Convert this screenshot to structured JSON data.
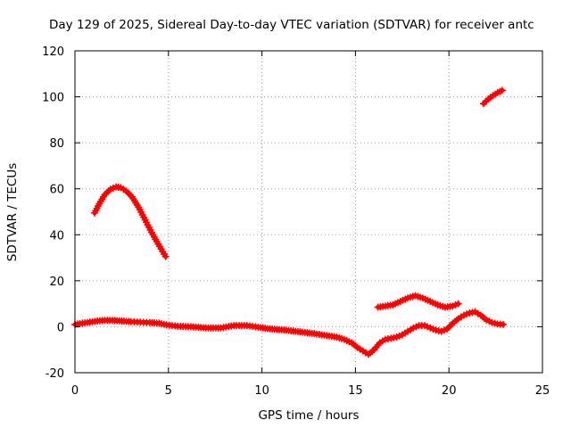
{
  "chart_data": {
    "type": "scatter",
    "title": "Day 129 of 2025, Sidereal Day-to-day VTEC variation (SDTVAR) for receiver antc",
    "xlabel": "GPS time / hours",
    "ylabel": "SDTVAR / TECUs",
    "xlim": [
      0,
      25
    ],
    "ylim": [
      -20,
      120
    ],
    "xticks": [
      "0",
      "5",
      "10",
      "15",
      "20",
      "25"
    ],
    "yticks": [
      "-20",
      "0",
      "20",
      "40",
      "60",
      "80",
      "100",
      "120"
    ],
    "grid": true,
    "marker": "+",
    "series_color": "#ff0000",
    "series": [
      {
        "name": "arc-1",
        "x": [
          1.05,
          1.3,
          1.6,
          1.9,
          2.2,
          2.45,
          2.75,
          3.05,
          3.4,
          3.75,
          4.1,
          4.45,
          4.85
        ],
        "y": [
          49.5,
          53.5,
          57.5,
          59.8,
          60.8,
          60.5,
          59.0,
          56.5,
          52.0,
          46.5,
          41.0,
          36.0,
          30.5
        ]
      },
      {
        "name": "arc-2",
        "x": [
          0.0,
          0.4,
          0.8,
          1.2,
          1.6,
          2.0,
          2.5,
          3.0,
          3.5,
          4.0,
          4.5,
          4.9,
          5.5,
          6.2,
          7.0,
          7.8,
          8.5,
          9.2,
          9.8,
          10.3,
          10.8,
          11.3,
          11.8,
          12.3,
          12.8,
          13.2,
          13.6,
          14.0,
          14.4,
          14.8,
          15.1,
          15.4,
          15.7,
          16.0,
          16.3,
          16.6,
          16.9,
          17.2,
          17.5,
          17.8,
          18.1,
          18.4,
          18.7,
          19.0,
          19.3,
          19.6,
          19.9,
          20.2,
          20.5,
          20.8,
          21.1,
          21.4,
          21.7,
          22.0,
          22.3,
          22.6,
          22.9
        ],
        "y": [
          1.0,
          1.5,
          2.0,
          2.5,
          2.8,
          2.8,
          2.5,
          2.2,
          2.0,
          1.8,
          1.5,
          0.8,
          0.2,
          0.0,
          -0.5,
          -0.5,
          0.5,
          0.5,
          -0.2,
          -0.8,
          -1.2,
          -1.5,
          -2.0,
          -2.5,
          -3.0,
          -3.5,
          -4.0,
          -4.5,
          -5.5,
          -7.0,
          -9.0,
          -10.5,
          -12.0,
          -10.0,
          -7.0,
          -5.5,
          -5.0,
          -4.5,
          -3.5,
          -2.0,
          -0.5,
          0.5,
          0.5,
          -0.5,
          -1.5,
          -2.0,
          -1.0,
          1.5,
          3.5,
          5.0,
          6.0,
          6.5,
          5.0,
          3.0,
          1.8,
          1.2,
          1.0
        ]
      },
      {
        "name": "arc-3",
        "x": [
          16.2,
          16.6,
          17.0,
          17.4,
          17.8,
          18.2,
          18.6,
          19.0,
          19.4,
          19.8,
          20.2,
          20.5
        ],
        "y": [
          8.5,
          9.0,
          9.5,
          11.0,
          12.5,
          13.5,
          12.5,
          11.0,
          9.5,
          8.5,
          9.0,
          10.0
        ]
      },
      {
        "name": "arc-4",
        "x": [
          21.85,
          22.1,
          22.35,
          22.6,
          22.85
        ],
        "y": [
          97.0,
          99.0,
          100.5,
          101.8,
          102.8
        ]
      }
    ]
  }
}
